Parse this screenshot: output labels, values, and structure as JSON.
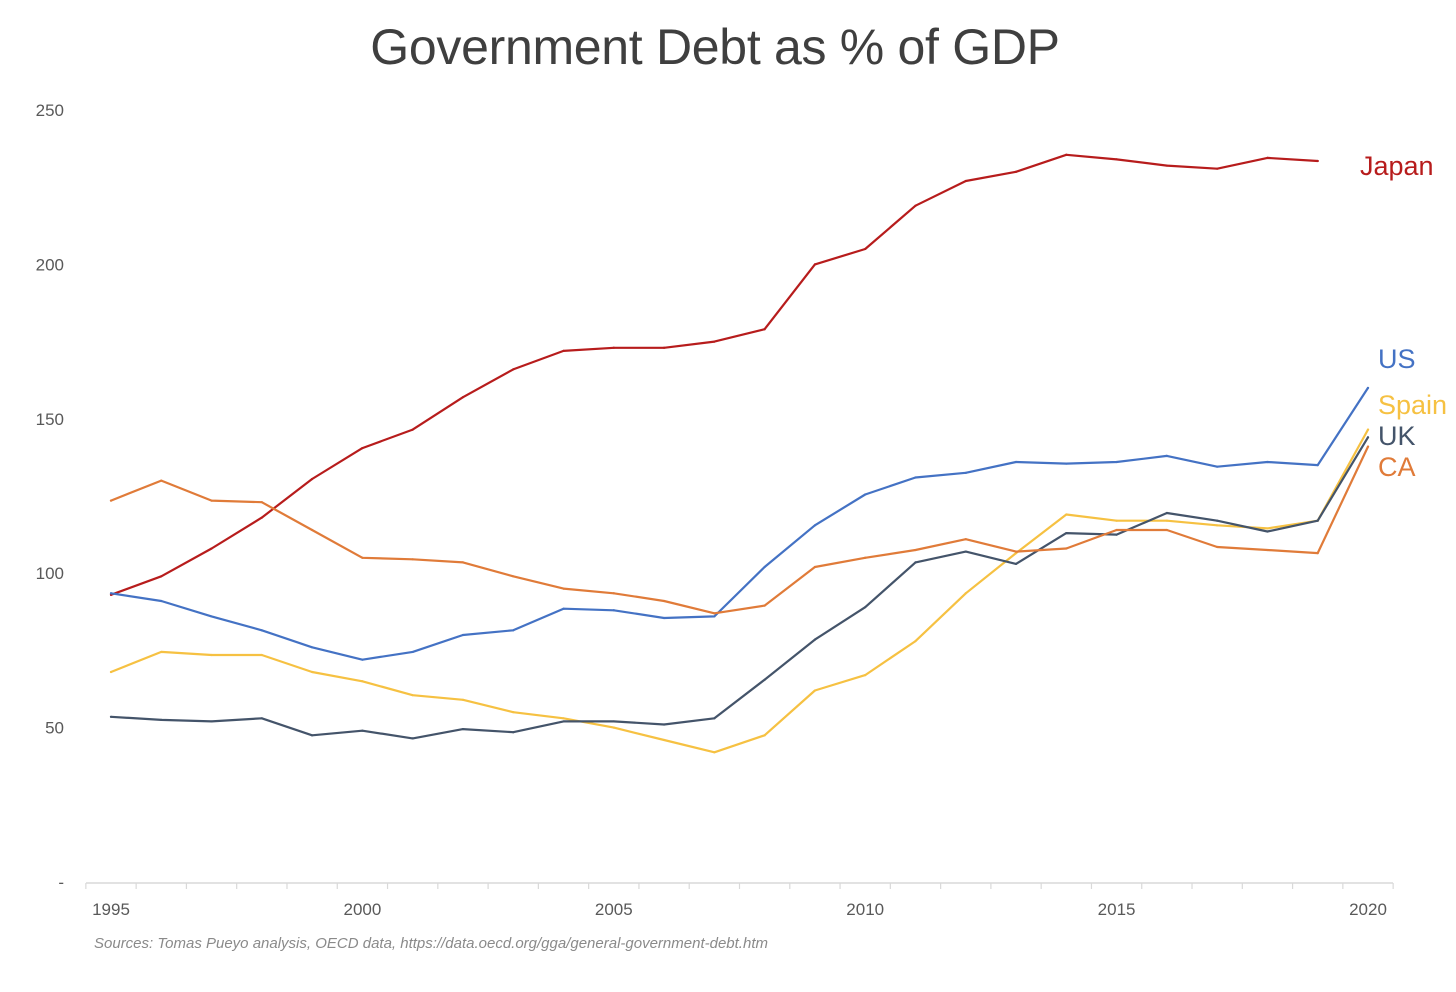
{
  "chart_data": {
    "type": "line",
    "title": "Government Debt as % of GDP",
    "xlabel": "",
    "ylabel": "",
    "source": "Sources: Tomas Pueyo analysis, OECD data, https://data.oecd.org/gga/general-government-debt.htm",
    "x": [
      1995,
      1996,
      1997,
      1998,
      1999,
      2000,
      2001,
      2002,
      2003,
      2004,
      2005,
      2006,
      2007,
      2008,
      2009,
      2010,
      2011,
      2012,
      2013,
      2014,
      2015,
      2016,
      2017,
      2018,
      2019,
      2020
    ],
    "xlim": [
      1995,
      2020
    ],
    "ylim": [
      0,
      250
    ],
    "yticks": [
      0,
      50,
      100,
      150,
      200,
      250
    ],
    "ytick_labels": [
      "-",
      "50",
      "100",
      "150",
      "200",
      "250"
    ],
    "xticks": [
      1995,
      2000,
      2005,
      2010,
      2015,
      2020
    ],
    "xtick_labels": [
      "1995",
      "2000",
      "2005",
      "2010",
      "2015",
      "2020"
    ],
    "grid": false,
    "legend": "direct labels at line ends (right)",
    "series": [
      {
        "name": "Japan",
        "label": "Japan",
        "color": "#b71c1c",
        "values": [
          93,
          99,
          108,
          118,
          130.5,
          140.5,
          146.5,
          157,
          166,
          172,
          173,
          173,
          175,
          179,
          200,
          205,
          219,
          227,
          230,
          235.5,
          234,
          232,
          231,
          234.5,
          233.5,
          null
        ]
      },
      {
        "name": "US",
        "label": "US",
        "color": "#4472c4",
        "values": [
          93.5,
          91,
          86,
          81.5,
          76,
          72,
          74.5,
          80,
          81.5,
          88.5,
          88,
          85.5,
          86,
          102,
          115.5,
          125.5,
          131,
          132.5,
          136,
          135.5,
          136,
          138,
          134.5,
          136,
          135,
          160
        ]
      },
      {
        "name": "Spain",
        "label": "Spain",
        "color": "#f6c142",
        "values": [
          68,
          74.5,
          73.5,
          73.5,
          68,
          65,
          60.5,
          59,
          55,
          53,
          50,
          46,
          42,
          47.5,
          62,
          67,
          78,
          93.5,
          106.5,
          119,
          117,
          117,
          115.5,
          114.5,
          117,
          146.5
        ]
      },
      {
        "name": "UK",
        "label": "UK",
        "color": "#44546a",
        "values": [
          53.5,
          52.5,
          52,
          53,
          47.5,
          49,
          46.5,
          49.5,
          48.5,
          52,
          52,
          51,
          53,
          65.5,
          78.5,
          89,
          103.5,
          107,
          103,
          113,
          112.5,
          119.5,
          117,
          113.5,
          117,
          144
        ]
      },
      {
        "name": "CA",
        "label": "CA",
        "color": "#e07b39",
        "values": [
          123.5,
          130,
          123.5,
          123,
          114,
          105,
          104.5,
          103.5,
          99,
          95,
          93.5,
          91,
          87,
          89.5,
          102,
          105,
          107.5,
          111,
          107,
          108,
          114,
          114,
          108.5,
          107.5,
          106.5,
          141
        ]
      }
    ]
  }
}
